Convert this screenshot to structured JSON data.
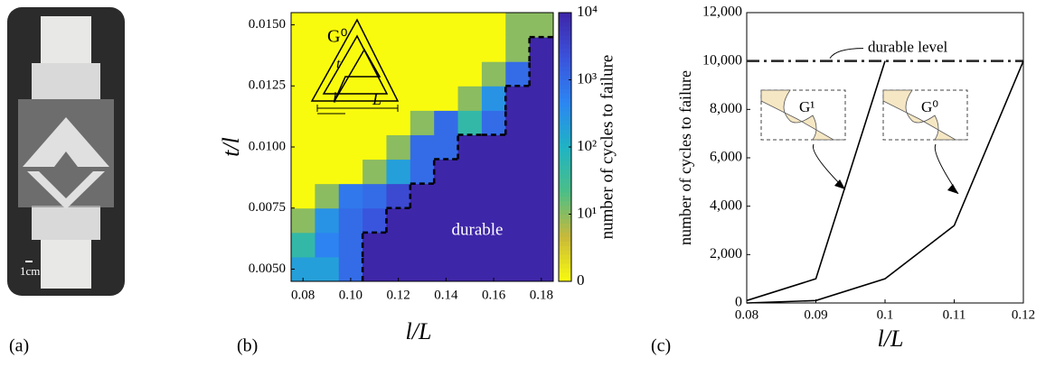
{
  "panels": {
    "labels": [
      "(a)",
      "(b)",
      "(c)"
    ],
    "scale_bar": "1cm"
  },
  "chart_data": [
    {
      "type": "heatmap",
      "x": [
        0.08,
        0.09,
        0.1,
        0.11,
        0.12,
        0.13,
        0.14,
        0.15,
        0.16,
        0.17,
        0.18
      ],
      "y": [
        0.005,
        0.006,
        0.007,
        0.008,
        0.009,
        0.01,
        0.011,
        0.012,
        0.013,
        0.014,
        0.015
      ],
      "values": [
        [
          200,
          200,
          1000,
          10000,
          10000,
          10000,
          10000,
          10000,
          10000,
          10000,
          10000
        ],
        [
          50,
          500,
          1000,
          10000,
          10000,
          10000,
          10000,
          10000,
          10000,
          10000,
          10000
        ],
        [
          10,
          300,
          1000,
          2000,
          10000,
          10000,
          10000,
          10000,
          10000,
          10000,
          10000
        ],
        [
          0,
          10,
          700,
          1000,
          3000,
          10000,
          10000,
          10000,
          10000,
          10000,
          10000
        ],
        [
          0,
          0,
          0,
          10,
          200,
          1000,
          10000,
          10000,
          10000,
          10000,
          10000
        ],
        [
          0,
          0,
          0,
          0,
          10,
          1000,
          1000,
          10000,
          10000,
          10000,
          10000
        ],
        [
          0,
          0,
          0,
          0,
          0,
          10,
          1000,
          50,
          1000,
          10000,
          10000
        ],
        [
          0,
          0,
          0,
          0,
          0,
          0,
          0,
          10,
          300,
          10000,
          10000
        ],
        [
          0,
          0,
          0,
          0,
          0,
          0,
          0,
          0,
          10,
          1000,
          10000
        ],
        [
          0,
          0,
          0,
          0,
          0,
          0,
          0,
          0,
          0,
          10,
          10000
        ],
        [
          0,
          0,
          0,
          0,
          0,
          0,
          0,
          0,
          0,
          10,
          10
        ]
      ],
      "xlim": [
        0.075,
        0.185
      ],
      "ylim": [
        0.0045,
        0.0155
      ],
      "xticks": [
        0.08,
        {
          "value": 0.1,
          "label": "0.10"
        },
        0.12,
        0.14,
        0.16,
        0.18
      ],
      "yticks": [
        {
          "value": 0.005,
          "label": "0.0050"
        },
        0.0075,
        {
          "value": 0.01,
          "label": "0.0100"
        },
        0.0125,
        {
          "value": 0.015,
          "label": "0.0150"
        }
      ],
      "xlabel": "l/L",
      "ylabel": "t/l",
      "clim": [
        0,
        10000
      ],
      "cticks": [
        0,
        {
          "value": 10,
          "label": "10¹"
        },
        {
          "value": 100,
          "label": "10²"
        },
        {
          "value": 1000,
          "label": "10³"
        },
        {
          "value": 10000,
          "label": "10⁴"
        }
      ],
      "colorbar_label": "number of cycles to failure",
      "colormap": [
        "#f9fb0e",
        "#c9b93a",
        "#4cbf87",
        "#1fb3c4",
        "#2c86f2",
        "#3b52dc",
        "#3e26a8"
      ],
      "annotation": "durable",
      "inset_labels": [
        "G⁰",
        "t",
        "l",
        "L"
      ]
    },
    {
      "type": "line",
      "series": [
        {
          "name": "G¹",
          "color": "#000000",
          "x": [
            0.08,
            0.09,
            0.1
          ],
          "values": [
            100,
            1000,
            10000
          ]
        },
        {
          "name": "G⁰",
          "color": "#000000",
          "x": [
            0.08,
            0.09,
            0.1,
            0.11,
            0.12
          ],
          "values": [
            0,
            100,
            1000,
            3200,
            10000
          ]
        }
      ],
      "xlim": [
        0.08,
        0.12
      ],
      "ylim": [
        0,
        12000
      ],
      "xticks": [
        0.08,
        0.09,
        0.1,
        0.11,
        0.12
      ],
      "yticks": [
        0,
        {
          "value": 2000,
          "label": "2,000"
        },
        {
          "value": 4000,
          "label": "4,000"
        },
        {
          "value": 6000,
          "label": "6,000"
        },
        {
          "value": 8000,
          "label": "8,000"
        },
        {
          "value": 10000,
          "label": "10,000"
        },
        {
          "value": 12000,
          "label": "12,000"
        }
      ],
      "xlabel": "l/L",
      "ylabel": "number of cycles to failure",
      "reference_line": {
        "value": 10000,
        "label": "durable level"
      }
    }
  ]
}
